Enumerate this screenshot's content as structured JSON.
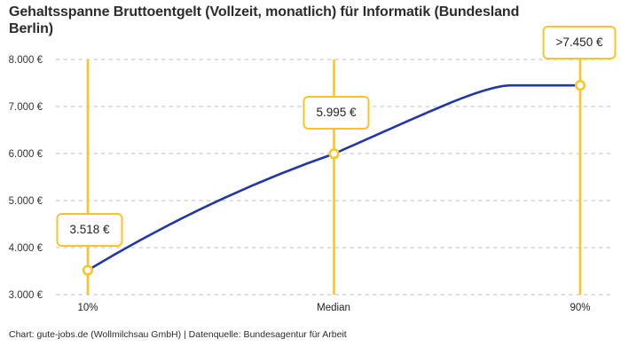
{
  "title": "Gehaltsspanne Bruttoentgelt (Vollzeit, monatlich) für Informatik (Bundesland Berlin)",
  "footer": "Chart: gute-jobs.de (Wollmilchsau GmbH) | Datenquelle: Bundesagentur für Arbeit",
  "colors": {
    "accent_yellow": "#fdc324",
    "line_blue": "#2236a6",
    "grid_gray": "#cccccc",
    "tick_text": "#333333",
    "title_text": "#2b2b2b"
  },
  "chart_data": {
    "type": "line",
    "title": "Gehaltsspanne Bruttoentgelt (Vollzeit, monatlich) für Informatik (Bundesland Berlin)",
    "categories": [
      "10%",
      "Median",
      "90%"
    ],
    "values": [
      3518,
      5995,
      7450
    ],
    "points": [
      {
        "category": "10%",
        "value": 3518,
        "label": "3.518 €"
      },
      {
        "category": "Median",
        "value": 5995,
        "label": "5.995 €"
      },
      {
        "category": "90%",
        "value": 7450,
        "label": ">7.450 €"
      }
    ],
    "xlabel": "",
    "ylabel": "",
    "ylim": [
      3000,
      8000
    ],
    "y_ticks": [
      {
        "value": 3000,
        "label": "3.000 €"
      },
      {
        "value": 4000,
        "label": "4.000 €"
      },
      {
        "value": 5000,
        "label": "5.000 €"
      },
      {
        "value": 6000,
        "label": "6.000 €"
      },
      {
        "value": 7000,
        "label": "7.000 €"
      },
      {
        "value": 8000,
        "label": "8.000 €"
      }
    ],
    "grid": "horizontal-dashed",
    "legend": "none",
    "annotations": "value labels in yellow-bordered boxes at each percentile, yellow vertical marker lines"
  }
}
